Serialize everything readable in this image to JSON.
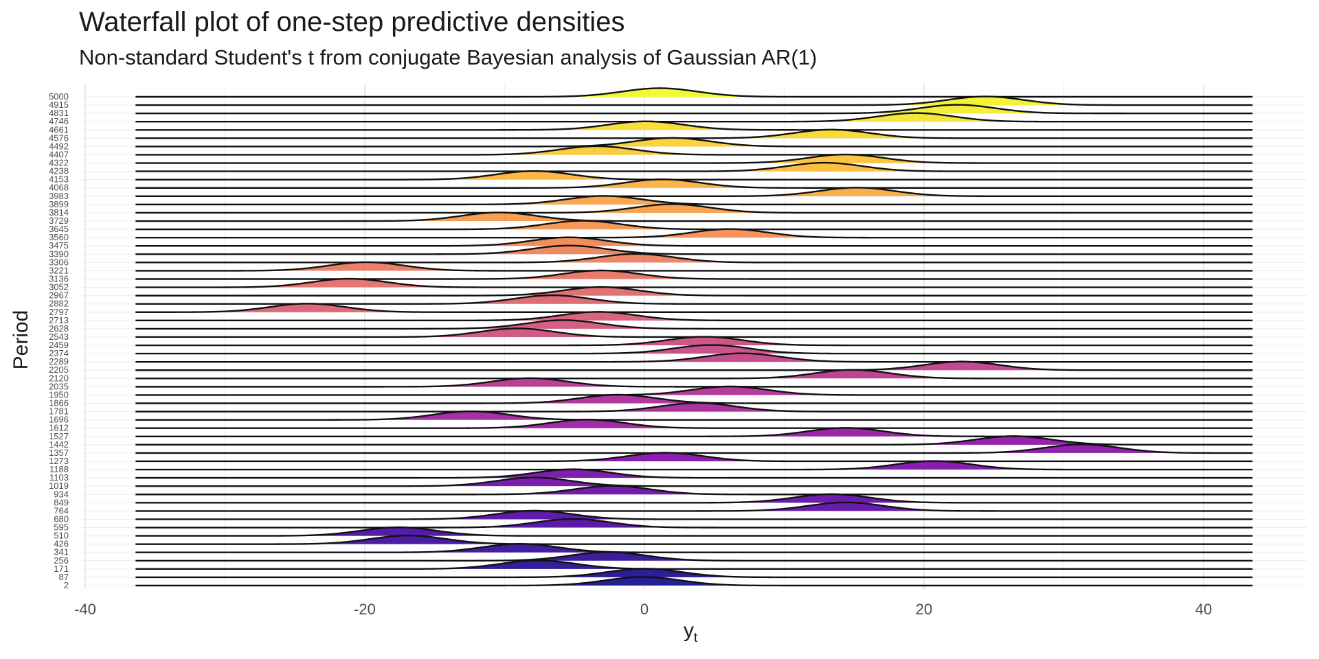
{
  "chart_data": {
    "type": "ridgeline",
    "title": "Waterfall plot of one-step predictive densities",
    "subtitle": "Non-standard Student's t from conjugate Bayesian analysis of Gaussian AR(1)",
    "ylabel": "Period",
    "xlabel": "y",
    "xlabel_subscript": "t",
    "xlim": [
      -40,
      47
    ],
    "x_ticks": [
      -40,
      -20,
      0,
      20,
      40
    ],
    "grid": true,
    "color_scale": "plasma (dark purple at low period → yellow at high period)",
    "series": [
      {
        "period": "2",
        "center": -0.1
      },
      {
        "period": "87",
        "center": 0.0
      },
      {
        "period": "171",
        "center": -7.6
      },
      {
        "period": "256",
        "center": -2.6
      },
      {
        "period": "341",
        "center": -8.9
      },
      {
        "period": "426",
        "center": -16.9
      },
      {
        "period": "510",
        "center": -17.6
      },
      {
        "period": "595",
        "center": -5.1
      },
      {
        "period": "680",
        "center": -7.9
      },
      {
        "period": "764",
        "center": 14.4
      },
      {
        "period": "849",
        "center": 13.4
      },
      {
        "period": "934",
        "center": -2.3
      },
      {
        "period": "1019",
        "center": -7.9
      },
      {
        "period": "1103",
        "center": -5.1
      },
      {
        "period": "1188",
        "center": 20.7
      },
      {
        "period": "1273",
        "center": 1.5
      },
      {
        "period": "1357",
        "center": 31.3
      },
      {
        "period": "1442",
        "center": 26.4
      },
      {
        "period": "1527",
        "center": 14.4
      },
      {
        "period": "1612",
        "center": -4.1
      },
      {
        "period": "1696",
        "center": -12.4
      },
      {
        "period": "1781",
        "center": 3.8
      },
      {
        "period": "1866",
        "center": -1.9
      },
      {
        "period": "1950",
        "center": 6.1
      },
      {
        "period": "2035",
        "center": -8.2
      },
      {
        "period": "2120",
        "center": 14.9
      },
      {
        "period": "2205",
        "center": 22.7
      },
      {
        "period": "2289",
        "center": 7.0
      },
      {
        "period": "2374",
        "center": 4.8
      },
      {
        "period": "2459",
        "center": 4.3
      },
      {
        "period": "2543",
        "center": -9.1
      },
      {
        "period": "2628",
        "center": -5.8
      },
      {
        "period": "2713",
        "center": -3.3
      },
      {
        "period": "2797",
        "center": -24.1
      },
      {
        "period": "2882",
        "center": -6.6
      },
      {
        "period": "2967",
        "center": -3.1
      },
      {
        "period": "3052",
        "center": -21.1
      },
      {
        "period": "3136",
        "center": -3.1
      },
      {
        "period": "3221",
        "center": -19.9
      },
      {
        "period": "3306",
        "center": -0.6
      },
      {
        "period": "3390",
        "center": -5.4
      },
      {
        "period": "3475",
        "center": -5.4
      },
      {
        "period": "3560",
        "center": 6.1
      },
      {
        "period": "3645",
        "center": -4.4
      },
      {
        "period": "3729",
        "center": -10.4
      },
      {
        "period": "3814",
        "center": 2.0
      },
      {
        "period": "3899",
        "center": -2.9
      },
      {
        "period": "3983",
        "center": 15.2
      },
      {
        "period": "4068",
        "center": 1.3
      },
      {
        "period": "4153",
        "center": -7.9
      },
      {
        "period": "4238",
        "center": 12.9
      },
      {
        "period": "4322",
        "center": 14.4
      },
      {
        "period": "4407",
        "center": -3.4
      },
      {
        "period": "4492",
        "center": 2.0
      },
      {
        "period": "4576",
        "center": 13.4
      },
      {
        "period": "4661",
        "center": 0.1
      },
      {
        "period": "4746",
        "center": 19.4
      },
      {
        "period": "4831",
        "center": 22.4
      },
      {
        "period": "4915",
        "center": 24.4
      },
      {
        "period": "5000",
        "center": 1.1
      }
    ]
  }
}
